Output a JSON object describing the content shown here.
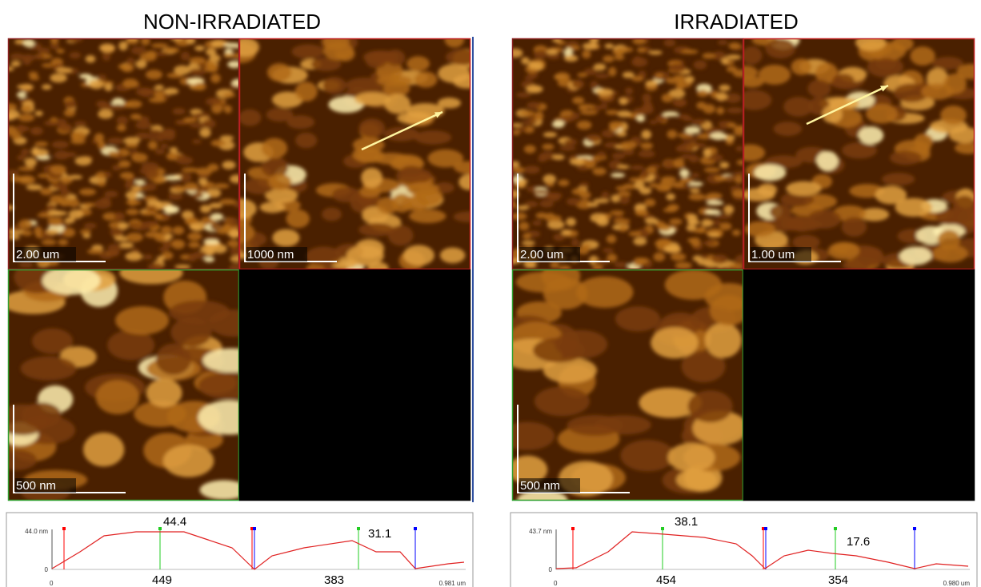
{
  "panels": [
    {
      "title": "NON-IRRADIATED",
      "scale_labels": [
        "2.00 um",
        "1000 nm",
        "500 nm"
      ],
      "profile": {
        "y_max_label": "44.0 nm",
        "y_min_label": "0",
        "x_min_label": "0",
        "x_max_label": "0.981 um",
        "peak_labels": [
          "44.4",
          "31.1"
        ],
        "width_labels": [
          "449",
          "383"
        ]
      }
    },
    {
      "title": "IRRADIATED",
      "scale_labels": [
        "2.00 um",
        "1.00 um",
        "500 nm"
      ],
      "profile": {
        "y_max_label": "43.7 nm",
        "y_min_label": "0",
        "x_min_label": "0",
        "x_max_label": "0.980 um",
        "peak_labels": [
          "38.1",
          "17.6"
        ],
        "width_labels": [
          "454",
          "354"
        ]
      }
    }
  ]
}
